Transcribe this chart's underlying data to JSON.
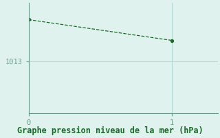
{
  "x": [
    0,
    1
  ],
  "y": [
    1016.2,
    1014.6
  ],
  "background_color": "#dff2ee",
  "line_color": "#1a6b2a",
  "marker_color": "#1a6b2a",
  "grid_color": "#b0d8d0",
  "axis_color": "#6a9a8a",
  "text_color": "#1a6b2a",
  "xlabel": "Graphe pression niveau de la mer (hPa)",
  "ytick_label": "1013",
  "ytick_value": 1013,
  "xlim": [
    0,
    1.32
  ],
  "ylim": [
    1009.0,
    1017.5
  ],
  "xlabel_fontsize": 8.5,
  "ytick_fontsize": 7.5,
  "xtick_fontsize": 7.5
}
